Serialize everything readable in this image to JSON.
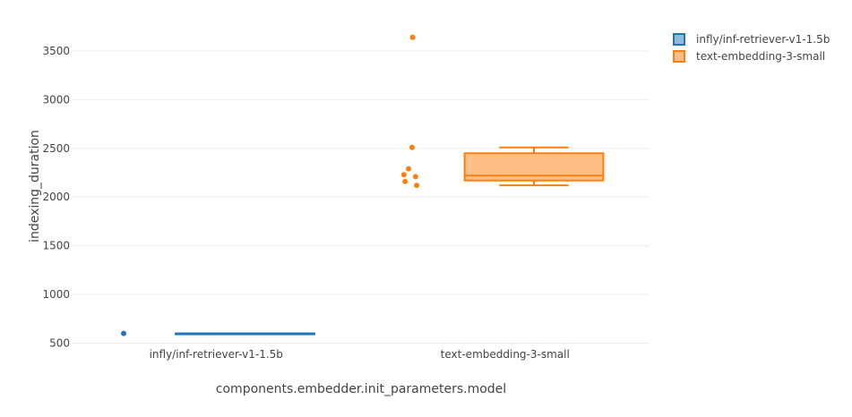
{
  "chart_data": {
    "type": "box",
    "xlabel": "components.embedder.init_parameters.model",
    "ylabel": "indexing_duration",
    "ylim": [
      440,
      3840
    ],
    "yticks": [
      500,
      1000,
      1500,
      2000,
      2500,
      3000,
      3500
    ],
    "grid": true,
    "legend_position": "top-right",
    "categories": [
      "infly/inf-retriever-v1-1.5b",
      "text-embedding-3-small"
    ],
    "series": [
      {
        "name": "infly/inf-retriever-v1-1.5b",
        "category": "infly/inf-retriever-v1-1.5b",
        "color": "#1f77b4",
        "fill": "#8fbbd9",
        "box": {
          "min": 600,
          "q1": 600,
          "median": 600,
          "q3": 600,
          "max": 600
        },
        "points": [
          600
        ]
      },
      {
        "name": "text-embedding-3-small",
        "category": "text-embedding-3-small",
        "color": "#ff7f0e",
        "fill": "#ffbf86",
        "box": {
          "min": 2120,
          "q1": 2170,
          "median": 2220,
          "q3": 2450,
          "max": 2510
        },
        "points": [
          3640,
          2510,
          2290,
          2230,
          2210,
          2160,
          2120
        ]
      }
    ]
  }
}
